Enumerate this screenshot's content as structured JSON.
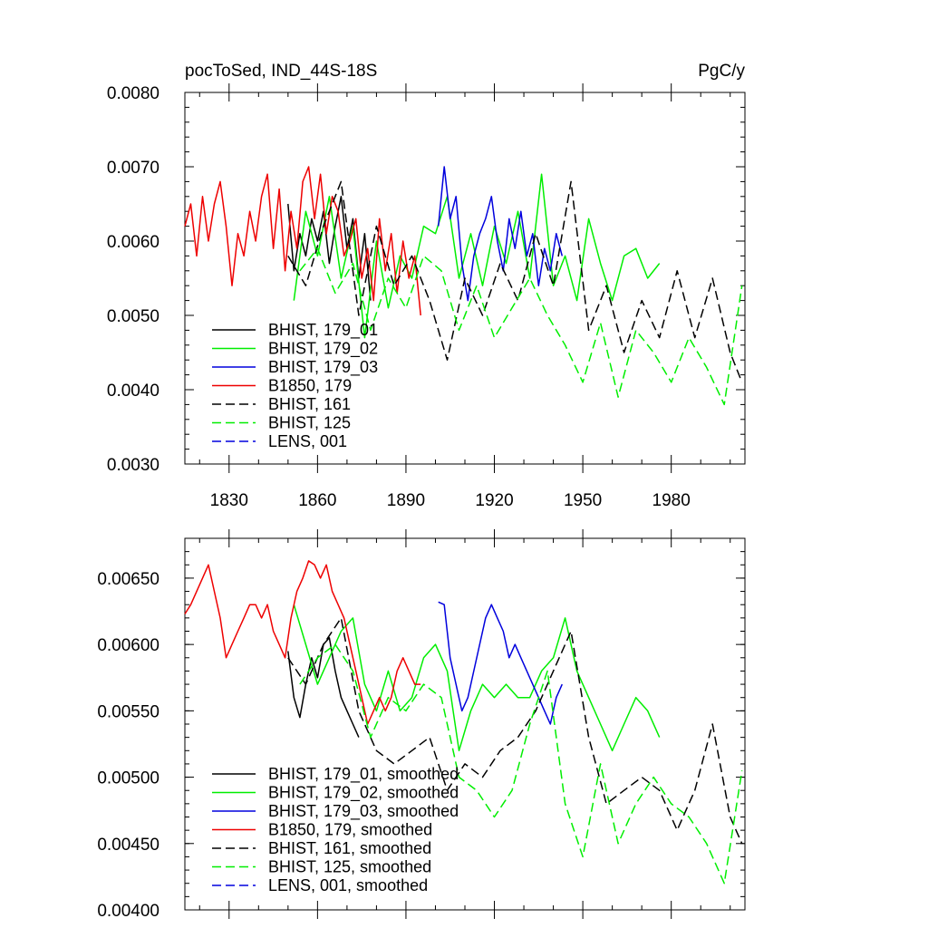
{
  "chart_data": [
    {
      "type": "line",
      "title_left": "pocToSed, IND_44S-18S",
      "title_right": "PgC/y",
      "xlabel": "",
      "ylabel": "",
      "xlim": [
        1815,
        2005
      ],
      "ylim": [
        0.003,
        0.008
      ],
      "x_ticks": [
        1830,
        1860,
        1890,
        1920,
        1950,
        1980
      ],
      "x_tick_labels": [
        "1830",
        "1860",
        "1890",
        "1920",
        "1950",
        "1980"
      ],
      "y_ticks": [
        0.003,
        0.004,
        0.005,
        0.006,
        0.007,
        0.008
      ],
      "y_tick_labels": [
        "0.0030",
        "0.0040",
        "0.0050",
        "0.0060",
        "0.0070",
        "0.0080"
      ],
      "legend_position": "bottom-left",
      "series": [
        {
          "name": "BHIST, 179_01",
          "color": "#000000",
          "dash": "solid",
          "x": [
            1850,
            1852,
            1854,
            1856,
            1858,
            1860,
            1862,
            1864,
            1866,
            1868,
            1870,
            1872,
            1874,
            1876,
            1878
          ],
          "y": [
            0.0065,
            0.0056,
            0.0061,
            0.0058,
            0.0063,
            0.006,
            0.0064,
            0.0057,
            0.0062,
            0.0066,
            0.0059,
            0.0063,
            0.0055,
            0.0061,
            0.0052
          ]
        },
        {
          "name": "BHIST, 179_02",
          "color": "#00ee00",
          "dash": "solid",
          "x": [
            1852,
            1856,
            1860,
            1864,
            1868,
            1872,
            1876,
            1880,
            1884,
            1888,
            1892,
            1896,
            1900,
            1904,
            1908,
            1912,
            1916,
            1920,
            1924,
            1928,
            1932,
            1936,
            1940,
            1944,
            1948,
            1952,
            1956,
            1960,
            1964,
            1968,
            1972,
            1976
          ],
          "y": [
            0.0052,
            0.0064,
            0.0058,
            0.0066,
            0.0055,
            0.0062,
            0.0047,
            0.006,
            0.0051,
            0.0058,
            0.0055,
            0.0062,
            0.0061,
            0.0066,
            0.0055,
            0.0061,
            0.0054,
            0.0062,
            0.0057,
            0.0064,
            0.0055,
            0.0069,
            0.0054,
            0.0058,
            0.0052,
            0.0063,
            0.0057,
            0.0052,
            0.0058,
            0.0059,
            0.0055,
            0.0057
          ]
        },
        {
          "name": "BHIST, 179_03",
          "color": "#0000dd",
          "dash": "solid",
          "x": [
            1901,
            1903,
            1905,
            1907,
            1909,
            1911,
            1913,
            1915,
            1917,
            1919,
            1921,
            1923,
            1925,
            1927,
            1929,
            1931,
            1933,
            1935,
            1937,
            1939,
            1941,
            1943
          ],
          "y": [
            0.0062,
            0.007,
            0.0063,
            0.0066,
            0.0057,
            0.0052,
            0.0058,
            0.0061,
            0.0063,
            0.0066,
            0.006,
            0.0056,
            0.0063,
            0.0059,
            0.0064,
            0.0058,
            0.0061,
            0.0054,
            0.0059,
            0.0056,
            0.0061,
            0.0058
          ]
        },
        {
          "name": "B1850, 179",
          "color": "#ee0000",
          "dash": "solid",
          "x": [
            1815,
            1817,
            1819,
            1821,
            1823,
            1825,
            1827,
            1829,
            1831,
            1833,
            1835,
            1837,
            1839,
            1841,
            1843,
            1845,
            1847,
            1849,
            1851,
            1853,
            1855,
            1857,
            1859,
            1861,
            1863,
            1865,
            1867,
            1869,
            1871,
            1873,
            1875,
            1877,
            1879,
            1881,
            1883,
            1885,
            1887,
            1889,
            1891,
            1893,
            1895
          ],
          "y": [
            0.0062,
            0.0065,
            0.0058,
            0.0066,
            0.006,
            0.0065,
            0.0068,
            0.0062,
            0.0054,
            0.0061,
            0.0058,
            0.0064,
            0.006,
            0.0066,
            0.0069,
            0.0059,
            0.0067,
            0.0056,
            0.0064,
            0.0059,
            0.0068,
            0.007,
            0.0063,
            0.0069,
            0.0061,
            0.0066,
            0.0064,
            0.0058,
            0.006,
            0.0063,
            0.0055,
            0.0059,
            0.0052,
            0.0063,
            0.0056,
            0.0061,
            0.0053,
            0.006,
            0.0055,
            0.0058,
            0.005
          ]
        },
        {
          "name": "BHIST, 161",
          "color": "#000000",
          "dash": "dashed",
          "x": [
            1850,
            1856,
            1862,
            1868,
            1874,
            1880,
            1886,
            1892,
            1898,
            1904,
            1910,
            1916,
            1922,
            1928,
            1934,
            1940,
            1946,
            1952,
            1958,
            1964,
            1970,
            1976,
            1982,
            1988,
            1994,
            2000,
            2004
          ],
          "y": [
            0.0058,
            0.0054,
            0.0062,
            0.0068,
            0.005,
            0.0062,
            0.0054,
            0.0058,
            0.0052,
            0.0044,
            0.0055,
            0.005,
            0.0057,
            0.0052,
            0.0061,
            0.0054,
            0.0068,
            0.0048,
            0.0054,
            0.0045,
            0.0052,
            0.0047,
            0.0056,
            0.0047,
            0.0055,
            0.0045,
            0.0041
          ]
        },
        {
          "name": "BHIST, 125",
          "color": "#00ee00",
          "dash": "dashed",
          "x": [
            1854,
            1860,
            1866,
            1872,
            1878,
            1884,
            1890,
            1896,
            1902,
            1908,
            1914,
            1920,
            1926,
            1932,
            1938,
            1944,
            1950,
            1956,
            1962,
            1968,
            1974,
            1980,
            1986,
            1992,
            1998,
            2004
          ],
          "y": [
            0.0056,
            0.0059,
            0.0053,
            0.0057,
            0.0048,
            0.0055,
            0.0051,
            0.0058,
            0.0056,
            0.0048,
            0.0054,
            0.0047,
            0.0051,
            0.0055,
            0.005,
            0.0046,
            0.0041,
            0.0049,
            0.0039,
            0.0048,
            0.0045,
            0.0041,
            0.0047,
            0.0043,
            0.0038,
            0.0054
          ]
        },
        {
          "name": "LENS, 001",
          "color": "#0000dd",
          "dash": "dashed",
          "x": [],
          "y": []
        }
      ]
    },
    {
      "type": "line",
      "title_left": "",
      "title_right": "",
      "xlabel": "",
      "ylabel": "",
      "xlim": [
        1815,
        2005
      ],
      "ylim": [
        0.004,
        0.0068
      ],
      "x_ticks": [
        1830,
        1860,
        1890,
        1920,
        1950,
        1980
      ],
      "x_tick_labels": [],
      "y_ticks": [
        0.004,
        0.0045,
        0.005,
        0.0055,
        0.006,
        0.0065
      ],
      "y_tick_labels": [
        "0.00400",
        "0.00450",
        "0.00500",
        "0.00550",
        "0.00600",
        "0.00650"
      ],
      "legend_position": "bottom-left",
      "series": [
        {
          "name": "BHIST, 179_01, smoothed",
          "color": "#000000",
          "dash": "solid",
          "x": [
            1850,
            1852,
            1854,
            1856,
            1858,
            1860,
            1862,
            1864,
            1866,
            1868,
            1870,
            1872,
            1874
          ],
          "y": [
            0.00595,
            0.0056,
            0.00545,
            0.0057,
            0.0059,
            0.00575,
            0.006,
            0.00605,
            0.0058,
            0.0056,
            0.0055,
            0.0054,
            0.0053
          ]
        },
        {
          "name": "BHIST, 179_02, smoothed",
          "color": "#00ee00",
          "dash": "solid",
          "x": [
            1852,
            1856,
            1860,
            1864,
            1868,
            1872,
            1876,
            1880,
            1884,
            1888,
            1892,
            1896,
            1900,
            1904,
            1908,
            1912,
            1916,
            1920,
            1924,
            1928,
            1932,
            1936,
            1940,
            1944,
            1948,
            1952,
            1956,
            1960,
            1964,
            1968,
            1972,
            1976
          ],
          "y": [
            0.0063,
            0.006,
            0.0057,
            0.0059,
            0.0061,
            0.0062,
            0.0057,
            0.0055,
            0.0058,
            0.0055,
            0.0056,
            0.0059,
            0.006,
            0.0058,
            0.0052,
            0.0055,
            0.0057,
            0.0056,
            0.0057,
            0.0056,
            0.0056,
            0.0058,
            0.0059,
            0.0062,
            0.0058,
            0.0056,
            0.0054,
            0.0052,
            0.0054,
            0.0056,
            0.0055,
            0.0053
          ]
        },
        {
          "name": "BHIST, 179_03, smoothed",
          "color": "#0000dd",
          "dash": "solid",
          "x": [
            1901,
            1903,
            1905,
            1907,
            1909,
            1911,
            1913,
            1915,
            1917,
            1919,
            1921,
            1923,
            1925,
            1927,
            1929,
            1931,
            1933,
            1935,
            1937,
            1939,
            1941,
            1943
          ],
          "y": [
            0.00632,
            0.0063,
            0.0059,
            0.0057,
            0.0055,
            0.0056,
            0.0058,
            0.006,
            0.0062,
            0.0063,
            0.0062,
            0.0061,
            0.0059,
            0.006,
            0.0059,
            0.0058,
            0.0057,
            0.0056,
            0.0055,
            0.0054,
            0.0056,
            0.0057
          ]
        },
        {
          "name": "B1850, 179, smoothed",
          "color": "#ee0000",
          "dash": "solid",
          "x": [
            1815,
            1817,
            1819,
            1821,
            1823,
            1825,
            1827,
            1829,
            1831,
            1833,
            1835,
            1837,
            1839,
            1841,
            1843,
            1845,
            1847,
            1849,
            1851,
            1853,
            1855,
            1857,
            1859,
            1861,
            1863,
            1865,
            1867,
            1869,
            1871,
            1873,
            1875,
            1877,
            1879,
            1881,
            1883,
            1885,
            1887,
            1889,
            1891,
            1893,
            1895
          ],
          "y": [
            0.00623,
            0.0063,
            0.0064,
            0.0065,
            0.0066,
            0.0064,
            0.0062,
            0.0059,
            0.006,
            0.0061,
            0.0062,
            0.0063,
            0.0063,
            0.0062,
            0.0063,
            0.0061,
            0.006,
            0.0059,
            0.0062,
            0.0064,
            0.0065,
            0.00663,
            0.0066,
            0.0065,
            0.0066,
            0.0064,
            0.0063,
            0.0062,
            0.006,
            0.0058,
            0.0056,
            0.0054,
            0.0055,
            0.0056,
            0.0055,
            0.0056,
            0.0058,
            0.0059,
            0.0058,
            0.0057,
            0.0057
          ]
        },
        {
          "name": "BHIST, 161, smoothed",
          "color": "#000000",
          "dash": "dashed",
          "x": [
            1850,
            1856,
            1862,
            1868,
            1874,
            1880,
            1886,
            1892,
            1898,
            1904,
            1910,
            1916,
            1922,
            1928,
            1934,
            1940,
            1946,
            1952,
            1958,
            1964,
            1970,
            1976,
            1982,
            1988,
            1994,
            2000,
            2004
          ],
          "y": [
            0.0059,
            0.0057,
            0.006,
            0.0062,
            0.0055,
            0.0052,
            0.0051,
            0.0052,
            0.0053,
            0.0049,
            0.0051,
            0.005,
            0.0052,
            0.0053,
            0.0055,
            0.0058,
            0.0061,
            0.0053,
            0.0048,
            0.0049,
            0.005,
            0.0049,
            0.0046,
            0.0049,
            0.0054,
            0.0047,
            0.0045
          ]
        },
        {
          "name": "BHIST, 125, smoothed",
          "color": "#00ee00",
          "dash": "dashed",
          "x": [
            1854,
            1860,
            1866,
            1872,
            1878,
            1884,
            1890,
            1896,
            1902,
            1908,
            1914,
            1920,
            1926,
            1932,
            1938,
            1944,
            1950,
            1956,
            1962,
            1968,
            1974,
            1980,
            1986,
            1992,
            1998,
            2004
          ],
          "y": [
            0.0057,
            0.0059,
            0.006,
            0.0058,
            0.0053,
            0.0056,
            0.0055,
            0.0057,
            0.0056,
            0.005,
            0.0049,
            0.0047,
            0.0049,
            0.0054,
            0.0058,
            0.0048,
            0.0044,
            0.0051,
            0.0045,
            0.0048,
            0.005,
            0.0048,
            0.0047,
            0.0045,
            0.0042,
            0.00505
          ]
        },
        {
          "name": "LENS, 001, smoothed",
          "color": "#0000dd",
          "dash": "dashed",
          "x": [],
          "y": []
        }
      ]
    }
  ]
}
